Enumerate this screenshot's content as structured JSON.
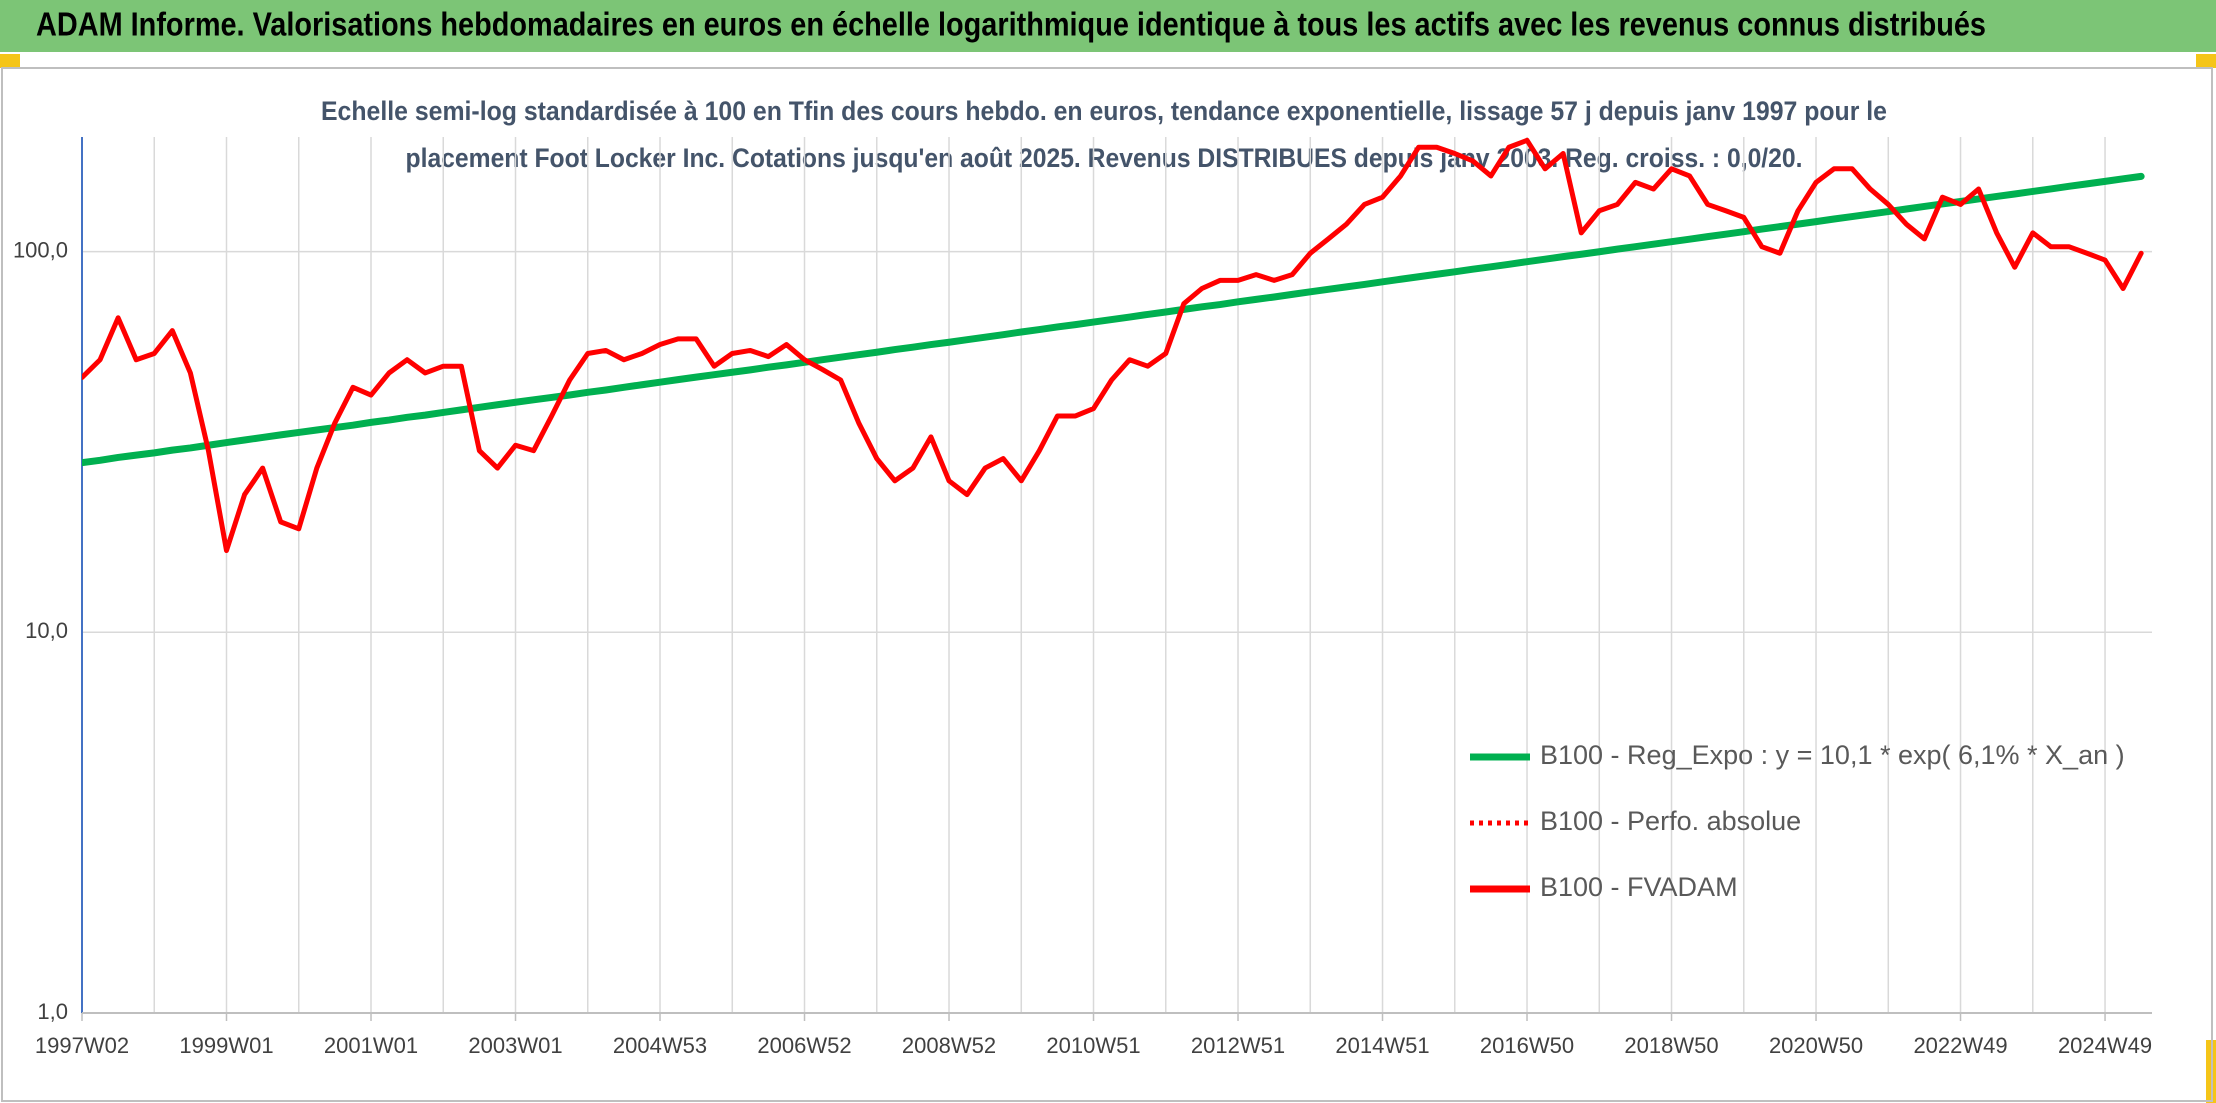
{
  "chart_data": {
    "type": "line",
    "title": "ADAM Informe. Valorisations hebdomadaires en euros en échelle logarithmique identique à tous les actifs avec les revenus connus distribués",
    "subtitle": [
      "Echelle semi-log standardisée à 100 en Tfin des cours hebdo. en euros, tendance exponentielle, lissage 57 j depuis janv 1997 pour le",
      "placement Foot Locker Inc. Cotations jusqu'en août 2025. Revenus DISTRIBUES depuis janv 2003. Reg. croiss. : 0,0/20."
    ],
    "log_scale": true,
    "grid": true,
    "legend": "center right",
    "ylim": [
      1,
      200
    ],
    "yticks": [
      {
        "value": 1,
        "label": "1,0"
      },
      {
        "value": 10,
        "label": "10,0"
      },
      {
        "value": 100,
        "label": "100,0"
      }
    ],
    "categories": [
      "1997W02",
      null,
      null,
      null,
      null,
      null,
      null,
      null,
      "1999W01",
      null,
      null,
      null,
      null,
      null,
      null,
      null,
      "2001W01",
      null,
      null,
      null,
      null,
      null,
      null,
      null,
      "2003W01",
      null,
      null,
      null,
      null,
      null,
      null,
      null,
      "2004W53",
      null,
      null,
      null,
      null,
      null,
      null,
      null,
      "2006W52",
      null,
      null,
      null,
      null,
      null,
      null,
      null,
      "2008W52",
      null,
      null,
      null,
      null,
      null,
      null,
      null,
      "2010W51",
      null,
      null,
      null,
      null,
      null,
      null,
      null,
      "2012W51",
      null,
      null,
      null,
      null,
      null,
      null,
      null,
      "2014W51",
      null,
      null,
      null,
      null,
      null,
      null,
      null,
      "2016W50",
      null,
      null,
      null,
      null,
      null,
      null,
      null,
      "2018W50",
      null,
      null,
      null,
      null,
      null,
      null,
      null,
      "2020W50",
      null,
      null,
      null,
      null,
      null,
      null,
      null,
      "2022W49",
      null,
      null,
      null,
      null,
      null,
      null,
      null,
      "2024W49",
      null,
      null
    ],
    "series": [
      {
        "name": "B100 - Reg_Expo : y = 10,1 * exp( 6,1% *  X_an )",
        "color": "#00b050",
        "dash": false,
        "width": 7,
        "values": [
          27.9,
          28.3,
          28.8,
          29.2,
          29.6,
          30.1,
          30.5,
          31.0,
          31.5,
          32.0,
          32.5,
          33.0,
          33.5,
          34.0,
          34.5,
          35.0,
          35.6,
          36.1,
          36.7,
          37.2,
          37.8,
          38.4,
          39.0,
          39.6,
          40.2,
          40.8,
          41.4,
          42.0,
          42.7,
          43.3,
          44.0,
          44.7,
          45.4,
          46.1,
          46.8,
          47.5,
          48.2,
          48.9,
          49.7,
          50.4,
          51.2,
          52.0,
          52.8,
          53.6,
          54.4,
          55.3,
          56.1,
          57.0,
          57.8,
          58.7,
          59.6,
          60.5,
          61.5,
          62.4,
          63.4,
          64.3,
          65.3,
          66.3,
          67.3,
          68.4,
          69.4,
          70.5,
          71.6,
          72.6,
          73.8,
          74.9,
          76.0,
          77.2,
          78.4,
          79.6,
          80.8,
          82.0,
          83.3,
          84.6,
          85.9,
          87.2,
          88.5,
          89.9,
          91.2,
          92.6,
          94.1,
          95.5,
          97.0,
          98.4,
          99.9,
          101.5,
          103.0,
          104.6,
          106.2,
          107.8,
          109.5,
          111.1,
          112.8,
          114.6,
          116.3,
          118.1,
          119.9,
          121.8,
          123.6,
          125.5,
          127.4,
          129.4,
          131.4,
          133.4,
          135.4,
          137.5,
          139.6,
          141.7,
          143.9,
          146.1,
          148.4,
          150.6,
          152.9,
          155.3,
          157.6
        ]
      },
      {
        "name": "B100 - Perfo. absolue",
        "color": "#ff0000",
        "dash": true,
        "width": 4,
        "values": [
          46.7,
          52,
          67,
          52,
          54,
          62,
          48,
          30,
          16.4,
          23,
          27,
          19.5,
          18.7,
          27,
          35.5,
          44,
          42,
          48,
          52,
          48,
          50,
          50,
          30,
          27,
          31,
          30,
          37,
          46,
          54,
          55,
          52,
          54,
          57,
          59,
          59,
          50,
          54,
          55,
          53,
          57,
          52,
          49,
          46,
          35.5,
          28.6,
          25,
          27,
          32.6,
          25,
          23,
          27,
          28.6,
          25,
          30,
          37,
          37,
          38.7,
          46,
          52,
          50,
          54,
          73,
          80,
          84,
          84,
          87,
          84,
          87,
          99,
          108,
          118,
          133,
          139,
          158,
          188,
          188,
          181,
          173,
          158,
          188,
          196,
          165,
          181,
          112,
          128,
          133,
          152,
          146,
          165,
          158,
          133,
          128,
          123,
          103,
          99,
          128,
          152,
          165,
          165,
          146,
          133,
          118,
          108,
          139,
          133,
          146,
          112,
          91,
          112,
          103,
          103,
          99,
          95,
          80,
          99
        ]
      },
      {
        "name": "B100 - FVADAM",
        "color": "#ff0000",
        "dash": false,
        "width": 5,
        "values": [
          46.7,
          52,
          67,
          52,
          54,
          62,
          48,
          30,
          16.4,
          23,
          27,
          19.5,
          18.7,
          27,
          35.5,
          44,
          42,
          48,
          52,
          48,
          50,
          50,
          30,
          27,
          31,
          30,
          37,
          46,
          54,
          55,
          52,
          54,
          57,
          59,
          59,
          50,
          54,
          55,
          53,
          57,
          52,
          49,
          46,
          35.5,
          28.6,
          25,
          27,
          32.6,
          25,
          23,
          27,
          28.6,
          25,
          30,
          37,
          37,
          38.7,
          46,
          52,
          50,
          54,
          73,
          80,
          84,
          84,
          87,
          84,
          87,
          99,
          108,
          118,
          133,
          139,
          158,
          188,
          188,
          181,
          173,
          158,
          188,
          196,
          165,
          181,
          112,
          128,
          133,
          152,
          146,
          165,
          158,
          133,
          128,
          123,
          103,
          99,
          128,
          152,
          165,
          165,
          146,
          133,
          118,
          108,
          139,
          133,
          146,
          112,
          91,
          112,
          103,
          103,
          99,
          95,
          80,
          99
        ]
      }
    ]
  }
}
